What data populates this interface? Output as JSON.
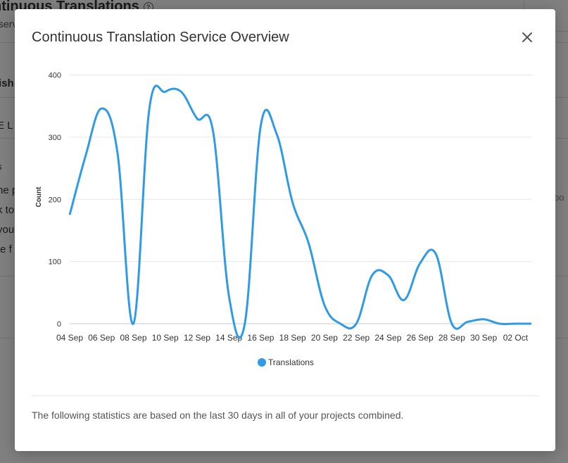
{
  "background": {
    "page_title": "ntinuous Translations",
    "page_subtitle": "serv",
    "fragments": [
      "ish",
      "E L",
      "s",
      "he p",
      "k to",
      "you",
      "te f",
      "bo"
    ]
  },
  "modal": {
    "title": "Continuous Translation Service Overview",
    "footer_note": "The following statistics are based on the last 30 days in all of your projects combined."
  },
  "chart_data": {
    "type": "line",
    "ylabel": "Count",
    "ylim": [
      0,
      400
    ],
    "yticks": [
      0,
      100,
      200,
      300,
      400
    ],
    "x_tick_labels": [
      "04 Sep",
      "06 Sep",
      "08 Sep",
      "10 Sep",
      "12 Sep",
      "14 Sep",
      "16 Sep",
      "18 Sep",
      "20 Sep",
      "22 Sep",
      "24 Sep",
      "26 Sep",
      "28 Sep",
      "30 Sep",
      "02 Oct"
    ],
    "x": [
      "04 Sep",
      "05 Sep",
      "06 Sep",
      "07 Sep",
      "08 Sep",
      "09 Sep",
      "10 Sep",
      "11 Sep",
      "12 Sep",
      "13 Sep",
      "14 Sep",
      "15 Sep",
      "16 Sep",
      "17 Sep",
      "18 Sep",
      "19 Sep",
      "20 Sep",
      "21 Sep",
      "22 Sep",
      "23 Sep",
      "24 Sep",
      "25 Sep",
      "26 Sep",
      "27 Sep",
      "28 Sep",
      "29 Sep",
      "30 Sep",
      "01 Oct",
      "02 Oct",
      "03 Oct"
    ],
    "series": [
      {
        "name": "Translations",
        "color": "#2f9be4",
        "values": [
          175,
          270,
          346,
          275,
          0,
          345,
          373,
          373,
          330,
          310,
          45,
          0,
          318,
          305,
          195,
          130,
          30,
          0,
          0,
          78,
          78,
          38,
          97,
          112,
          0,
          3,
          7,
          0,
          0,
          0
        ]
      }
    ],
    "grid": true,
    "legend": "bottom-center"
  }
}
